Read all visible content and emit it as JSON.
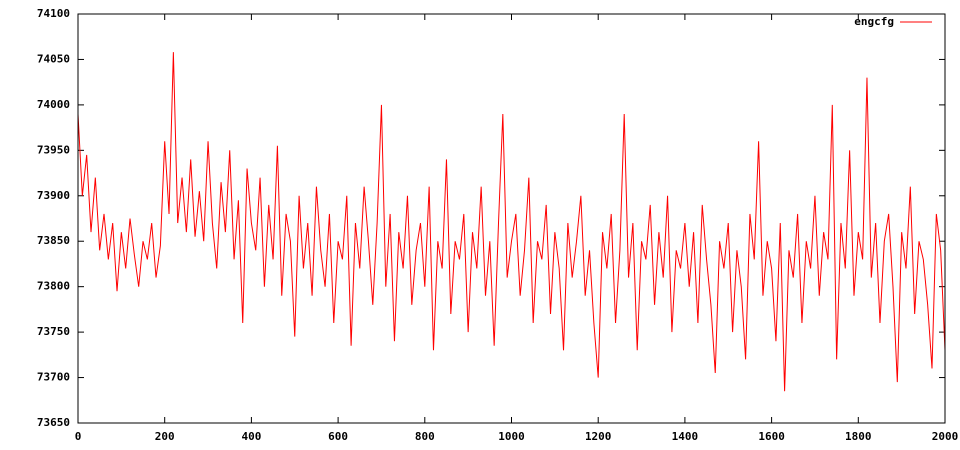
{
  "chart_data": {
    "type": "line",
    "x": [
      0,
      10,
      20,
      30,
      40,
      50,
      60,
      70,
      80,
      90,
      100,
      110,
      120,
      130,
      140,
      150,
      160,
      170,
      180,
      190,
      200,
      210,
      220,
      230,
      240,
      250,
      260,
      270,
      280,
      290,
      300,
      310,
      320,
      330,
      340,
      350,
      360,
      370,
      380,
      390,
      400,
      410,
      420,
      430,
      440,
      450,
      460,
      470,
      480,
      490,
      500,
      510,
      520,
      530,
      540,
      550,
      560,
      570,
      580,
      590,
      600,
      610,
      620,
      630,
      640,
      650,
      660,
      670,
      680,
      690,
      700,
      710,
      720,
      730,
      740,
      750,
      760,
      770,
      780,
      790,
      800,
      810,
      820,
      830,
      840,
      850,
      860,
      870,
      880,
      890,
      900,
      910,
      920,
      930,
      940,
      950,
      960,
      970,
      980,
      990,
      1000,
      1010,
      1020,
      1030,
      1040,
      1050,
      1060,
      1070,
      1080,
      1090,
      1100,
      1110,
      1120,
      1130,
      1140,
      1150,
      1160,
      1170,
      1180,
      1190,
      1200,
      1210,
      1220,
      1230,
      1240,
      1250,
      1260,
      1270,
      1280,
      1290,
      1300,
      1310,
      1320,
      1330,
      1340,
      1350,
      1360,
      1370,
      1380,
      1390,
      1400,
      1410,
      1420,
      1430,
      1440,
      1450,
      1460,
      1470,
      1480,
      1490,
      1500,
      1510,
      1520,
      1530,
      1540,
      1550,
      1560,
      1570,
      1580,
      1590,
      1600,
      1610,
      1620,
      1630,
      1640,
      1650,
      1660,
      1670,
      1680,
      1690,
      1700,
      1710,
      1720,
      1730,
      1740,
      1750,
      1760,
      1770,
      1780,
      1790,
      1800,
      1810,
      1820,
      1830,
      1840,
      1850,
      1860,
      1870,
      1880,
      1890,
      1900,
      1910,
      1920,
      1930,
      1940,
      1950,
      1960,
      1970,
      1980,
      1990,
      2000
    ],
    "series": [
      {
        "name": "engcfg",
        "color": "#ff0000",
        "values": [
          73990,
          73900,
          73945,
          73860,
          73920,
          73840,
          73880,
          73830,
          73870,
          73795,
          73860,
          73820,
          73875,
          73835,
          73800,
          73850,
          73830,
          73870,
          73810,
          73845,
          73960,
          73880,
          74058,
          73870,
          73920,
          73860,
          73940,
          73855,
          73905,
          73850,
          73960,
          73870,
          73820,
          73915,
          73860,
          73950,
          73830,
          73895,
          73760,
          73930,
          73870,
          73840,
          73920,
          73800,
          73890,
          73830,
          73955,
          73790,
          73880,
          73850,
          73745,
          73900,
          73820,
          73870,
          73790,
          73910,
          73840,
          73800,
          73880,
          73760,
          73850,
          73830,
          73900,
          73735,
          73870,
          73820,
          73910,
          73850,
          73780,
          73870,
          74000,
          73800,
          73880,
          73740,
          73860,
          73820,
          73900,
          73780,
          73840,
          73870,
          73800,
          73910,
          73730,
          73850,
          73820,
          73940,
          73770,
          73850,
          73830,
          73880,
          73750,
          73860,
          73820,
          73910,
          73790,
          73850,
          73735,
          73870,
          73990,
          73810,
          73850,
          73880,
          73790,
          73840,
          73920,
          73760,
          73850,
          73830,
          73890,
          73770,
          73860,
          73820,
          73730,
          73870,
          73810,
          73850,
          73900,
          73790,
          73840,
          73760,
          73700,
          73860,
          73820,
          73880,
          73760,
          73840,
          73990,
          73810,
          73870,
          73730,
          73850,
          73830,
          73890,
          73780,
          73860,
          73810,
          73900,
          73750,
          73840,
          73820,
          73870,
          73800,
          73860,
          73760,
          73890,
          73830,
          73780,
          73705,
          73850,
          73820,
          73870,
          73750,
          73840,
          73800,
          73720,
          73880,
          73830,
          73960,
          73790,
          73850,
          73820,
          73740,
          73870,
          73685,
          73840,
          73810,
          73880,
          73760,
          73850,
          73820,
          73900,
          73790,
          73860,
          73830,
          74000,
          73720,
          73870,
          73820,
          73950,
          73790,
          73860,
          73830,
          74030,
          73810,
          73870,
          73760,
          73850,
          73880,
          73800,
          73695,
          73860,
          73820,
          73910,
          73770,
          73850,
          73830,
          73780,
          73710,
          73880,
          73840,
          73730
        ]
      }
    ],
    "xlim": [
      0,
      2000
    ],
    "xticks": [
      0,
      200,
      400,
      600,
      800,
      1000,
      1200,
      1400,
      1600,
      1800,
      2000
    ],
    "ylim": [
      73650,
      74100
    ],
    "yticks": [
      73650,
      73700,
      73750,
      73800,
      73850,
      73900,
      73950,
      74000,
      74050,
      74100
    ],
    "legend": "top-right"
  }
}
